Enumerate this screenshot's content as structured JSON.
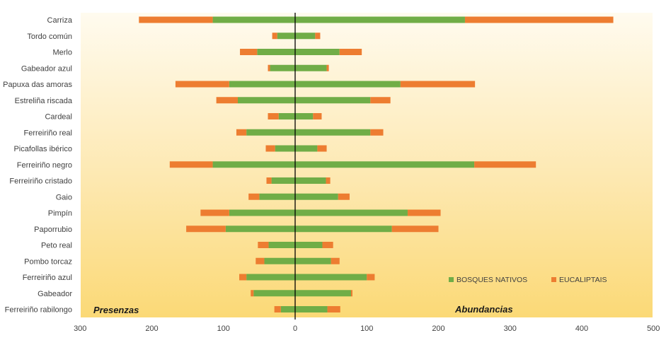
{
  "chart_data": {
    "type": "bar",
    "orientation": "horizontal",
    "stacked": true,
    "diverging": true,
    "categories": [
      "Carriza",
      "Tordo común",
      "Merlo",
      "Gabeador azul",
      "Papuxa das amoras",
      "Estreliña riscada",
      "Cardeal",
      "Ferreiriño real",
      "Picafollas ibérico",
      "Ferreiriño negro",
      "Ferreiriño cristado",
      "Gaio",
      "Pimpín",
      "Paporrubio",
      "Peto real",
      "Pombo torcaz",
      "Ferreiriño azul",
      "Gabeador",
      "Ferreiriño rabilongo"
    ],
    "left_panel": {
      "label": "Presenzas",
      "series": [
        {
          "name": "BOSQUES NATIVOS",
          "color": "#70AD47",
          "values": [
            115,
            25,
            53,
            35,
            92,
            80,
            23,
            68,
            28,
            115,
            33,
            50,
            92,
            97,
            37,
            43,
            68,
            58,
            20
          ]
        },
        {
          "name": "EUCALIPTAIS",
          "color": "#ED7D31",
          "values": [
            103,
            7,
            24,
            3,
            75,
            30,
            15,
            14,
            13,
            60,
            7,
            15,
            40,
            55,
            15,
            12,
            10,
            4,
            9
          ]
        }
      ]
    },
    "right_panel": {
      "label": "Abundancias",
      "series": [
        {
          "name": "BOSQUES NATIVOS",
          "color": "#70AD47",
          "values": [
            237,
            28,
            62,
            44,
            147,
            105,
            25,
            105,
            31,
            250,
            43,
            60,
            157,
            135,
            38,
            50,
            100,
            78,
            45
          ]
        },
        {
          "name": "EUCALIPTAIS",
          "color": "#ED7D31",
          "values": [
            207,
            7,
            31,
            3,
            104,
            28,
            12,
            18,
            13,
            86,
            6,
            16,
            46,
            65,
            15,
            12,
            11,
            2,
            18
          ]
        }
      ]
    },
    "x_ticks": [
      "300",
      "200",
      "100",
      "0",
      "100",
      "200",
      "300",
      "400",
      "500"
    ],
    "xlim": [
      -300,
      500
    ],
    "legend": [
      "BOSQUES NATIVOS",
      "EUCALIPTAIS"
    ],
    "legend_position": "bottom-right",
    "grid": false
  }
}
